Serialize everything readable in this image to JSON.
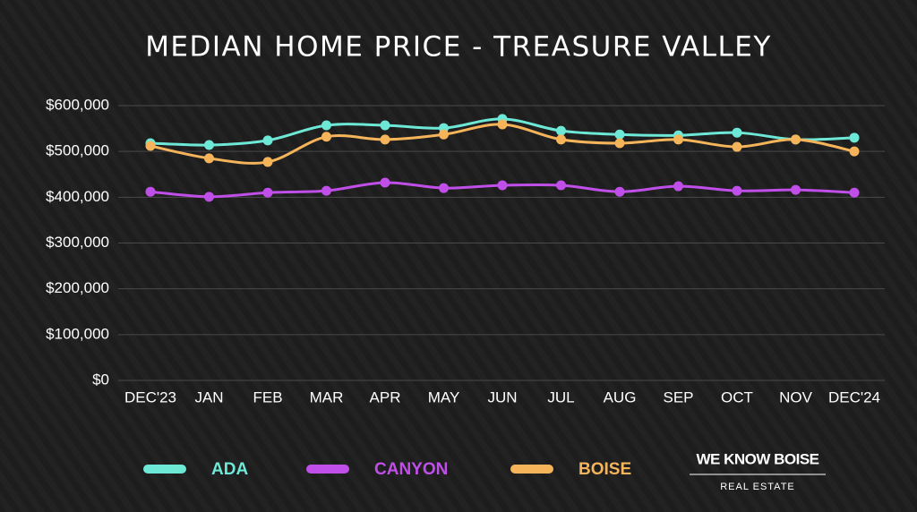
{
  "chart_data": {
    "type": "line",
    "title": "MEDIAN HOME PRICE - TREASURE VALLEY",
    "categories": [
      "DEC'23",
      "JAN",
      "FEB",
      "MAR",
      "APR",
      "MAY",
      "JUN",
      "JUL",
      "AUG",
      "SEP",
      "OCT",
      "NOV",
      "DEC'24"
    ],
    "series": [
      {
        "name": "ADA",
        "color": "#6ee8d6",
        "values": [
          518000,
          514000,
          524000,
          557000,
          557000,
          551000,
          571000,
          545000,
          537000,
          535000,
          541000,
          526000,
          530000
        ]
      },
      {
        "name": "CANYON",
        "color": "#c04ee8",
        "values": [
          412000,
          401000,
          410000,
          414000,
          432000,
          420000,
          426000,
          426000,
          412000,
          424000,
          414000,
          416000,
          410000
        ]
      },
      {
        "name": "BOISE",
        "color": "#f5b45a",
        "values": [
          512000,
          485000,
          477000,
          532000,
          526000,
          537000,
          559000,
          526000,
          518000,
          526000,
          510000,
          526000,
          500000
        ]
      }
    ],
    "ylim": [
      0,
      600000
    ],
    "yticks": [
      {
        "value": 0,
        "label": "$0"
      },
      {
        "value": 100000,
        "label": "$100,000"
      },
      {
        "value": 200000,
        "label": "$200,000"
      },
      {
        "value": 300000,
        "label": "$300,000"
      },
      {
        "value": 400000,
        "label": "$400,000"
      },
      {
        "value": 500000,
        "label": "$500,000"
      },
      {
        "value": 600000,
        "label": "$600,000"
      }
    ],
    "grid": true,
    "legend": "bottom"
  },
  "branding": {
    "name": "WE KNOW BOISE",
    "tagline": "REAL ESTATE"
  }
}
